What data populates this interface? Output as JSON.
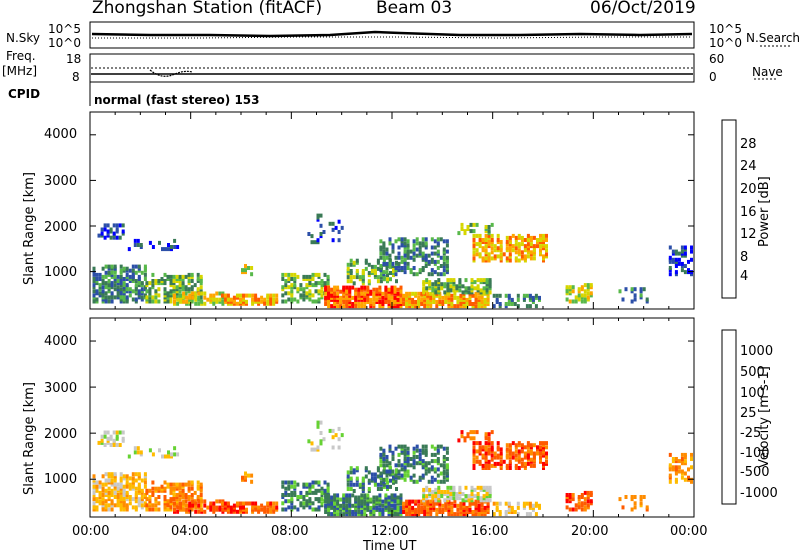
{
  "header": {
    "station": "Zhongshan Station (fitACF)",
    "beam": "Beam 03",
    "date": "06/Oct/2019"
  },
  "panels": {
    "nsky_label": "N.Sky",
    "nsky_ticks": [
      "10^5",
      "10^0"
    ],
    "nsearch_label": "N.Search",
    "nsearch_ticks": [
      "10^5",
      "10^0"
    ],
    "freq_label": "Freq.",
    "freq_unit": "[MHz]",
    "freq_ticks": [
      "18",
      "8"
    ],
    "nave_label": "Nave",
    "nave_ticks": [
      "60",
      "0"
    ],
    "cpid_label": "CPID",
    "cpid_text": "normal (fast stereo) 153"
  },
  "colors": {
    "power": [
      "#0000ff",
      "#2c4fa8",
      "#3a7a56",
      "#58b84a",
      "#d6d600",
      "#ffa500",
      "#ff5b00",
      "#ff0000"
    ],
    "velocity": [
      "#ff0000",
      "#ff5b00",
      "#ff8c00",
      "#ffbb00",
      "#c8c8c8",
      "#66d233",
      "#3a7a56",
      "#2c4fa8",
      "#0000ff"
    ]
  },
  "chart_data": [
    {
      "type": "heatmap",
      "ylabel": "Slant Range [km]",
      "ylim": [
        180,
        4500
      ],
      "yticks": [
        "1000",
        "2000",
        "3000",
        "4000"
      ],
      "xlabel": "",
      "colorbar": {
        "label": "Power [dB]",
        "ticks": [
          "4",
          "8",
          "12",
          "16",
          "20",
          "24",
          "28"
        ]
      }
    },
    {
      "type": "heatmap",
      "ylabel": "Slant Range [km]",
      "ylim": [
        180,
        4500
      ],
      "yticks": [
        "1000",
        "2000",
        "3000",
        "4000"
      ],
      "xlabel": "Time UT",
      "xticks": [
        "00:00",
        "04:00",
        "08:00",
        "12:00",
        "16:00",
        "20:00",
        "00:00"
      ],
      "colorbar": {
        "label": "Velocity [m s-1]",
        "ticks": [
          "1000",
          "500",
          "100",
          "25",
          "-25",
          "-100",
          "-500",
          "-1000"
        ]
      }
    }
  ]
}
